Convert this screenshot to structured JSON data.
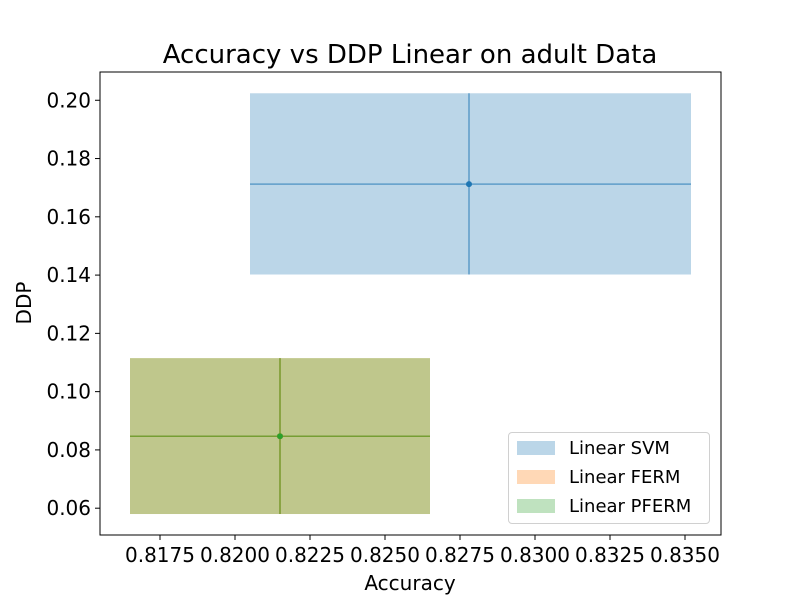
{
  "chart_data": {
    "type": "scatter",
    "title": "Accuracy vs DDP Linear on adult Data",
    "xlabel": "Accuracy",
    "ylabel": "DDP",
    "xlim": [
      0.8155,
      0.8362
    ],
    "ylim": [
      0.0508,
      0.2097
    ],
    "x_ticks": [
      0.8175,
      0.82,
      0.8225,
      0.825,
      0.8275,
      0.83,
      0.8325,
      0.835
    ],
    "x_tick_labels": [
      "0.8175",
      "0.8200",
      "0.8225",
      "0.8250",
      "0.8275",
      "0.8300",
      "0.8325",
      "0.8350"
    ],
    "y_ticks": [
      0.06,
      0.08,
      0.1,
      0.12,
      0.14,
      0.16,
      0.18,
      0.2
    ],
    "y_tick_labels": [
      "0.06",
      "0.08",
      "0.10",
      "0.12",
      "0.14",
      "0.16",
      "0.18",
      "0.20"
    ],
    "grid": false,
    "legend_position": "lower-right",
    "series": [
      {
        "name": "Linear SVM",
        "color": "#1f77b4",
        "x": 0.8278,
        "y": 0.1712,
        "x_range": [
          0.8205,
          0.8352
        ],
        "y_range": [
          0.1402,
          0.2024
        ]
      },
      {
        "name": "Linear FERM",
        "color": "#ff7f0e",
        "x": 0.8215,
        "y": 0.0847,
        "x_range": [
          0.8165,
          0.8265
        ],
        "y_range": [
          0.058,
          0.1115
        ]
      },
      {
        "name": "Linear PFERM",
        "color": "#2ca02c",
        "x": 0.8215,
        "y": 0.0847,
        "x_range": [
          0.8165,
          0.8265
        ],
        "y_range": [
          0.058,
          0.1115
        ]
      }
    ]
  }
}
